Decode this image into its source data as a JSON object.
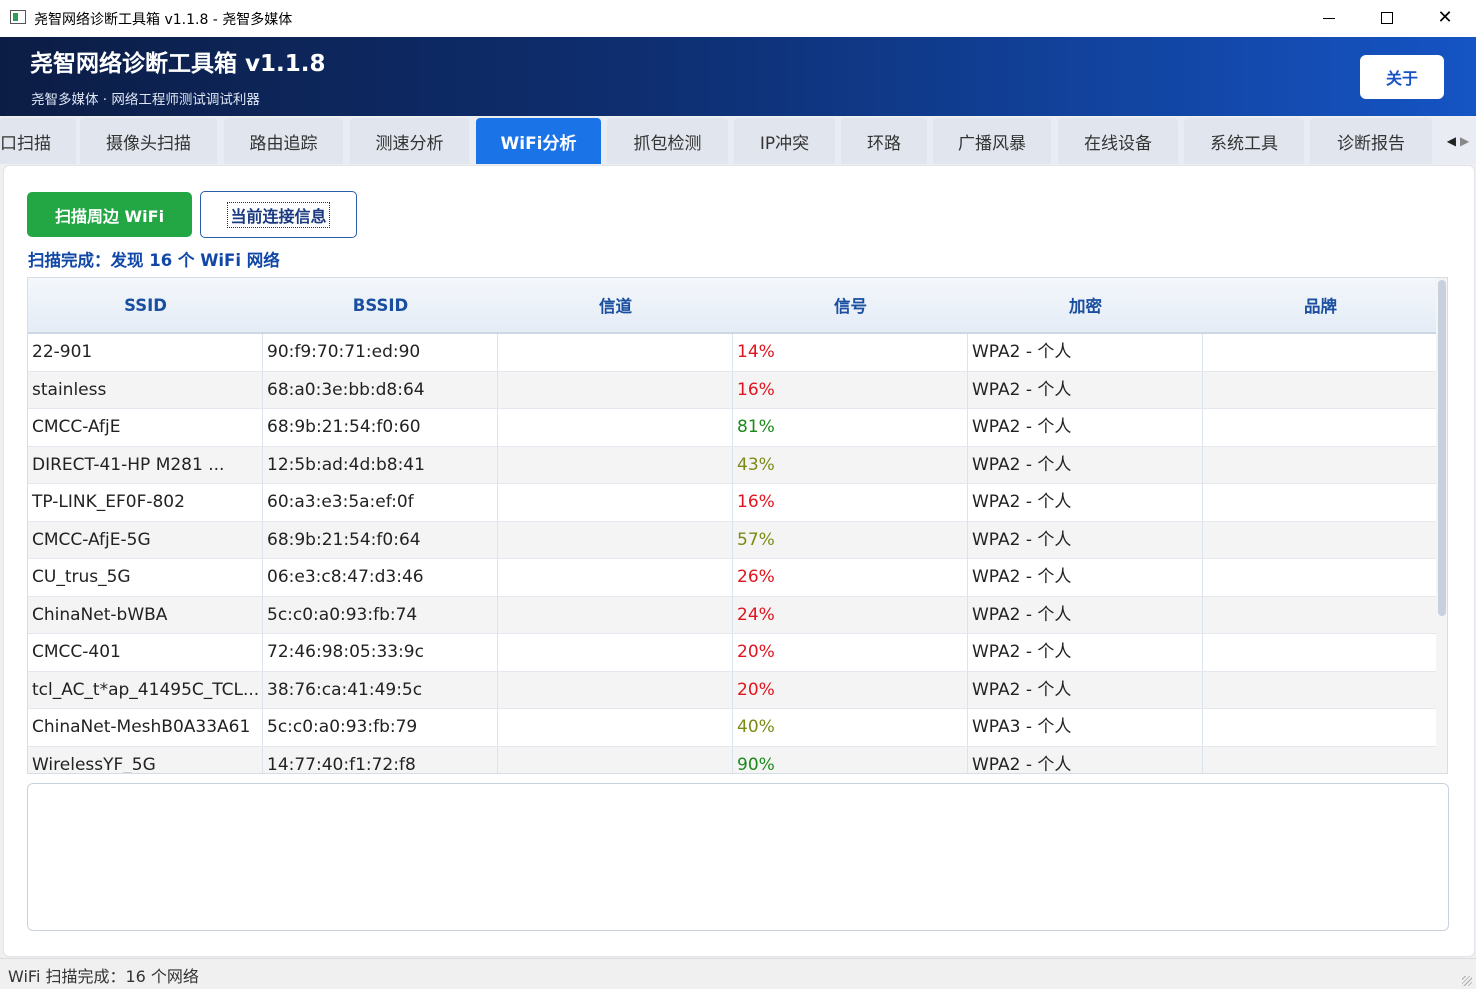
{
  "window": {
    "title": "尧智网络诊断工具箱 v1.1.8 - 尧智多媒体",
    "minimize_icon": "minimize-icon",
    "maximize_icon": "maximize-icon",
    "close_icon": "close-icon"
  },
  "header": {
    "title": "尧智网络诊断工具箱  v1.1.8",
    "subtitle": "尧智多媒体 · 网络工程师测试调试利器",
    "about_label": "关于"
  },
  "tabs": [
    {
      "label": "口扫描",
      "active": false
    },
    {
      "label": "摄像头扫描",
      "active": false
    },
    {
      "label": "路由追踪",
      "active": false
    },
    {
      "label": "测速分析",
      "active": false
    },
    {
      "label": "WiFi分析",
      "active": true
    },
    {
      "label": "抓包检测",
      "active": false
    },
    {
      "label": "IP冲突",
      "active": false
    },
    {
      "label": "环路",
      "active": false
    },
    {
      "label": "广播风暴",
      "active": false
    },
    {
      "label": "在线设备",
      "active": false
    },
    {
      "label": "系统工具",
      "active": false
    },
    {
      "label": "诊断报告",
      "active": false
    }
  ],
  "tab_scroll": {
    "left": "◀",
    "right": "▶"
  },
  "wifi": {
    "scan_button": "扫描周边 WiFi",
    "info_button": "当前连接信息",
    "status": "扫描完成：发现 16 个 WiFi 网络",
    "columns": [
      "SSID",
      "BSSID",
      "信道",
      "信号",
      "加密",
      "品牌"
    ],
    "rows": [
      {
        "ssid": "22-901",
        "bssid": "90:f9:70:71:ed:90",
        "channel": "",
        "signal": "14%",
        "level": "red",
        "enc": "WPA2 - 个人",
        "brand": ""
      },
      {
        "ssid": "stainless",
        "bssid": "68:a0:3e:bb:d8:64",
        "channel": "",
        "signal": "16%",
        "level": "red",
        "enc": "WPA2 - 个人",
        "brand": ""
      },
      {
        "ssid": "CMCC-AfjE",
        "bssid": "68:9b:21:54:f0:60",
        "channel": "",
        "signal": "81%",
        "level": "green",
        "enc": "WPA2 - 个人",
        "brand": ""
      },
      {
        "ssid": "DIRECT-41-HP M281 ...",
        "bssid": "12:5b:ad:4d:b8:41",
        "channel": "",
        "signal": "43%",
        "level": "olive",
        "enc": "WPA2 - 个人",
        "brand": ""
      },
      {
        "ssid": "TP-LINK_EF0F-802",
        "bssid": "60:a3:e3:5a:ef:0f",
        "channel": "",
        "signal": "16%",
        "level": "red",
        "enc": "WPA2 - 个人",
        "brand": ""
      },
      {
        "ssid": "CMCC-AfjE-5G",
        "bssid": "68:9b:21:54:f0:64",
        "channel": "",
        "signal": "57%",
        "level": "olive",
        "enc": "WPA2 - 个人",
        "brand": ""
      },
      {
        "ssid": "CU_trus_5G",
        "bssid": "06:e3:c8:47:d3:46",
        "channel": "",
        "signal": "26%",
        "level": "red",
        "enc": "WPA2 - 个人",
        "brand": ""
      },
      {
        "ssid": "ChinaNet-bWBA",
        "bssid": "5c:c0:a0:93:fb:74",
        "channel": "",
        "signal": "24%",
        "level": "red",
        "enc": "WPA2 - 个人",
        "brand": ""
      },
      {
        "ssid": "CMCC-401",
        "bssid": "72:46:98:05:33:9c",
        "channel": "",
        "signal": "20%",
        "level": "red",
        "enc": "WPA2 - 个人",
        "brand": ""
      },
      {
        "ssid": "tcl_AC_t*ap_41495C_TCL...",
        "bssid": "38:76:ca:41:49:5c",
        "channel": "",
        "signal": "20%",
        "level": "red",
        "enc": "WPA2 - 个人",
        "brand": ""
      },
      {
        "ssid": "ChinaNet-MeshB0A33A61",
        "bssid": "5c:c0:a0:93:fb:79",
        "channel": "",
        "signal": "40%",
        "level": "olive",
        "enc": "WPA3 - 个人",
        "brand": ""
      },
      {
        "ssid": "WirelessYF_5G",
        "bssid": "14:77:40:f1:72:f8",
        "channel": "",
        "signal": "90%",
        "level": "green",
        "enc": "WPA2 - 个人",
        "brand": ""
      }
    ]
  },
  "colors": {
    "red": "#e0141e",
    "green": "#1a8a1a",
    "olive": "#7c8a14",
    "accent": "#1b73e8",
    "scan_green": "#22a744"
  },
  "statusbar": {
    "text": "WiFi 扫描完成：16 个网络"
  }
}
